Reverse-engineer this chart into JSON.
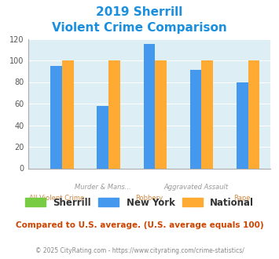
{
  "title_line1": "2019 Sherrill",
  "title_line2": "Violent Crime Comparison",
  "x_labels_top": [
    "",
    "Murder & Mans...",
    "",
    "Aggravated Assault",
    ""
  ],
  "x_labels_bot": [
    "All Violent Crime",
    "",
    "Robbery",
    "",
    "Rape"
  ],
  "series": {
    "Sherrill": [
      0,
      0,
      0,
      0,
      0
    ],
    "New York": [
      95,
      58,
      115,
      91,
      80
    ],
    "National": [
      100,
      100,
      100,
      100,
      100
    ]
  },
  "colors": {
    "Sherrill": "#77cc44",
    "New York": "#4499ee",
    "National": "#ffaa33"
  },
  "ylim": [
    0,
    120
  ],
  "yticks": [
    0,
    20,
    40,
    60,
    80,
    100,
    120
  ],
  "plot_bg": "#ddeef5",
  "title_color": "#1a8fdd",
  "subtitle_note": "Compared to U.S. average. (U.S. average equals 100)",
  "footer": "© 2025 CityRating.com - https://www.cityrating.com/crime-statistics/",
  "subtitle_color": "#cc4400",
  "footer_color": "#888888",
  "bar_width": 0.25
}
